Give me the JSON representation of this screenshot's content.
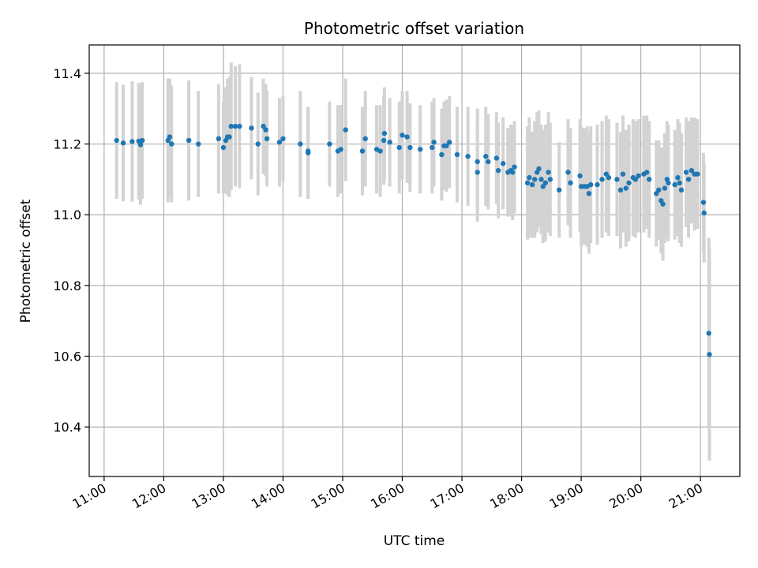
{
  "chart_data": {
    "type": "scatter",
    "title": "Photometric offset variation",
    "xlabel": "UTC time",
    "ylabel": "Photometric offset",
    "grid": true,
    "x_unit": "hours (UTC)",
    "xlim": [
      10.75,
      21.66
    ],
    "ylim": [
      10.26,
      11.48
    ],
    "x_ticks": [
      {
        "value": 11,
        "label": "11:00"
      },
      {
        "value": 12,
        "label": "12:00"
      },
      {
        "value": 13,
        "label": "13:00"
      },
      {
        "value": 14,
        "label": "14:00"
      },
      {
        "value": 15,
        "label": "15:00"
      },
      {
        "value": 16,
        "label": "16:00"
      },
      {
        "value": 17,
        "label": "17:00"
      },
      {
        "value": 18,
        "label": "18:00"
      },
      {
        "value": 19,
        "label": "19:00"
      },
      {
        "value": 20,
        "label": "20:00"
      },
      {
        "value": 21,
        "label": "21:00"
      }
    ],
    "y_ticks": [
      {
        "value": 10.4,
        "label": "10.4"
      },
      {
        "value": 10.6,
        "label": "10.6"
      },
      {
        "value": 10.8,
        "label": "10.8"
      },
      {
        "value": 11.0,
        "label": "11.0"
      },
      {
        "value": 11.2,
        "label": "11.2"
      },
      {
        "value": 11.4,
        "label": "11.4"
      }
    ],
    "marker_color": "#1f77b4",
    "errorbar_color": "#d3d3d3",
    "points": [
      [
        11.21,
        11.21,
        0.165
      ],
      [
        11.32,
        11.203,
        0.165
      ],
      [
        11.47,
        11.207,
        0.17
      ],
      [
        11.58,
        11.208,
        0.165
      ],
      [
        11.61,
        11.198,
        0.17
      ],
      [
        11.64,
        11.21,
        0.165
      ],
      [
        12.07,
        11.21,
        0.175
      ],
      [
        12.1,
        11.22,
        0.165
      ],
      [
        12.13,
        11.2,
        0.165
      ],
      [
        12.42,
        11.21,
        0.17
      ],
      [
        12.58,
        11.2,
        0.15
      ],
      [
        12.92,
        11.215,
        0.155
      ],
      [
        13.0,
        11.19,
        0.13
      ],
      [
        13.04,
        11.21,
        0.15
      ],
      [
        13.07,
        11.22,
        0.165
      ],
      [
        13.1,
        11.22,
        0.17
      ],
      [
        13.13,
        11.25,
        0.18
      ],
      [
        13.2,
        11.25,
        0.17
      ],
      [
        13.27,
        11.25,
        0.175
      ],
      [
        13.47,
        11.245,
        0.145
      ],
      [
        13.58,
        11.2,
        0.145
      ],
      [
        13.67,
        11.25,
        0.135
      ],
      [
        13.71,
        11.24,
        0.13
      ],
      [
        13.73,
        11.215,
        0.135
      ],
      [
        13.94,
        11.205,
        0.125
      ],
      [
        14.0,
        11.215,
        0.12
      ],
      [
        14.29,
        11.2,
        0.15
      ],
      [
        14.42,
        11.175,
        0.13
      ],
      [
        14.42,
        11.18,
        0.125
      ],
      [
        14.78,
        11.2,
        0.12
      ],
      [
        14.92,
        11.18,
        0.13
      ],
      [
        14.97,
        11.185,
        0.125
      ],
      [
        15.05,
        11.24,
        0.145
      ],
      [
        15.33,
        11.18,
        0.125
      ],
      [
        15.38,
        11.215,
        0.135
      ],
      [
        15.57,
        11.185,
        0.125
      ],
      [
        15.63,
        11.18,
        0.13
      ],
      [
        15.69,
        11.21,
        0.125
      ],
      [
        15.7,
        11.23,
        0.13
      ],
      [
        15.79,
        11.205,
        0.125
      ],
      [
        15.95,
        11.19,
        0.13
      ],
      [
        16.0,
        11.225,
        0.125
      ],
      [
        16.08,
        11.22,
        0.13
      ],
      [
        16.13,
        11.19,
        0.125
      ],
      [
        16.3,
        11.185,
        0.125
      ],
      [
        16.5,
        11.19,
        0.13
      ],
      [
        16.53,
        11.205,
        0.125
      ],
      [
        16.66,
        11.17,
        0.13
      ],
      [
        16.7,
        11.195,
        0.125
      ],
      [
        16.74,
        11.195,
        0.13
      ],
      [
        16.79,
        11.205,
        0.13
      ],
      [
        16.92,
        11.17,
        0.135
      ],
      [
        17.1,
        11.165,
        0.14
      ],
      [
        17.26,
        11.15,
        0.15
      ],
      [
        17.26,
        11.12,
        0.14
      ],
      [
        17.4,
        11.165,
        0.14
      ],
      [
        17.44,
        11.15,
        0.135
      ],
      [
        17.58,
        11.16,
        0.13
      ],
      [
        17.61,
        11.125,
        0.135
      ],
      [
        17.69,
        11.145,
        0.13
      ],
      [
        17.77,
        11.12,
        0.125
      ],
      [
        17.82,
        11.125,
        0.13
      ],
      [
        17.85,
        11.12,
        0.135
      ],
      [
        17.88,
        11.135,
        0.13
      ],
      [
        18.1,
        11.09,
        0.16
      ],
      [
        18.13,
        11.105,
        0.17
      ],
      [
        18.18,
        11.085,
        0.15
      ],
      [
        18.22,
        11.1,
        0.165
      ],
      [
        18.26,
        11.12,
        0.17
      ],
      [
        18.29,
        11.13,
        0.165
      ],
      [
        18.33,
        11.1,
        0.155
      ],
      [
        18.36,
        11.08,
        0.16
      ],
      [
        18.4,
        11.09,
        0.165
      ],
      [
        18.45,
        11.12,
        0.17
      ],
      [
        18.48,
        11.1,
        0.16
      ],
      [
        18.63,
        11.07,
        0.135
      ],
      [
        18.78,
        11.12,
        0.15
      ],
      [
        18.82,
        11.09,
        0.155
      ],
      [
        18.98,
        11.11,
        0.16
      ],
      [
        19.0,
        11.08,
        0.17
      ],
      [
        19.05,
        11.08,
        0.165
      ],
      [
        19.1,
        11.08,
        0.17
      ],
      [
        19.13,
        11.06,
        0.17
      ],
      [
        19.16,
        11.085,
        0.165
      ],
      [
        19.27,
        11.085,
        0.17
      ],
      [
        19.35,
        11.1,
        0.165
      ],
      [
        19.42,
        11.115,
        0.165
      ],
      [
        19.46,
        11.105,
        0.165
      ],
      [
        19.6,
        11.1,
        0.16
      ],
      [
        19.66,
        11.07,
        0.165
      ],
      [
        19.7,
        11.115,
        0.165
      ],
      [
        19.75,
        11.075,
        0.165
      ],
      [
        19.8,
        11.09,
        0.165
      ],
      [
        19.87,
        11.105,
        0.165
      ],
      [
        19.91,
        11.1,
        0.165
      ],
      [
        19.96,
        11.11,
        0.16
      ],
      [
        20.05,
        11.115,
        0.165
      ],
      [
        20.1,
        11.12,
        0.16
      ],
      [
        20.14,
        11.1,
        0.165
      ],
      [
        20.26,
        11.06,
        0.15
      ],
      [
        20.3,
        11.07,
        0.14
      ],
      [
        20.34,
        11.04,
        0.15
      ],
      [
        20.37,
        11.03,
        0.16
      ],
      [
        20.4,
        11.075,
        0.155
      ],
      [
        20.44,
        11.1,
        0.165
      ],
      [
        20.46,
        11.09,
        0.165
      ],
      [
        20.57,
        11.085,
        0.155
      ],
      [
        20.62,
        11.105,
        0.165
      ],
      [
        20.65,
        11.09,
        0.17
      ],
      [
        20.68,
        11.07,
        0.16
      ],
      [
        20.76,
        11.12,
        0.155
      ],
      [
        20.8,
        11.1,
        0.165
      ],
      [
        20.85,
        11.125,
        0.15
      ],
      [
        20.9,
        11.115,
        0.16
      ],
      [
        20.95,
        11.115,
        0.155
      ],
      [
        21.05,
        11.035,
        0.14
      ],
      [
        21.06,
        11.005,
        0.14
      ],
      [
        21.14,
        10.665,
        0.27
      ],
      [
        21.15,
        10.605,
        0.3
      ]
    ]
  }
}
